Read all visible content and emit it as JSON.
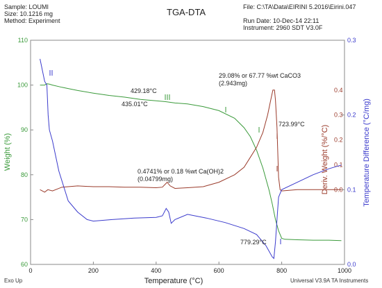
{
  "header": {
    "sample_line": "Sample: LOUMI",
    "size_line": "Size:   10.1216 mg",
    "method_line": "Method: Experiment",
    "file_line": "File: C:\\TA\\Data\\EIRINI 5.2016\\Eirini.047",
    "run_date_line": "Run Date: 10-Dec-14 22:11",
    "instrument_line": "Instrument: 2960 SDT V3.0F"
  },
  "footer": {
    "exo": "Exo Up",
    "software": "Universal V3.9A TA Instruments"
  },
  "colors": {
    "weight": "#3a9a3a",
    "deriv": "#9a3a2a",
    "temp_diff": "#3a3acc",
    "frame": "#888888"
  },
  "chart_data": {
    "type": "line",
    "title": "TGA-DTA",
    "xlabel": "Temperature (°C)",
    "xlim": [
      0,
      1000
    ],
    "x_ticks": [
      0,
      200,
      400,
      600,
      800,
      1000
    ],
    "axes": {
      "weight": {
        "label": "Weight (%)",
        "lim": [
          60,
          110
        ],
        "ticks": [
          60,
          70,
          80,
          90,
          100,
          110
        ]
      },
      "deriv": {
        "label": "Deriv. Weight (%/°C)",
        "lim": [
          -0.3,
          0.6
        ],
        "ticks": [
          0.0,
          0.1,
          0.2,
          0.3,
          0.4
        ]
      },
      "temp_diff": {
        "label": "Temperature Difference (°C/mg)",
        "lim": [
          0.0,
          0.3
        ],
        "ticks": [
          0.0,
          0.1,
          0.2,
          0.3
        ]
      }
    },
    "series": [
      {
        "axis": "weight",
        "points": [
          [
            30,
            100
          ],
          [
            45,
            100
          ],
          [
            52,
            100.3
          ],
          [
            60,
            100.2
          ],
          [
            70,
            100
          ],
          [
            100,
            99.5
          ],
          [
            150,
            98.8
          ],
          [
            200,
            98.2
          ],
          [
            250,
            97.7
          ],
          [
            300,
            97.3
          ],
          [
            350,
            96.8
          ],
          [
            400,
            96.5
          ],
          [
            430,
            96.3
          ],
          [
            440,
            96.2
          ],
          [
            460,
            96
          ],
          [
            500,
            95.8
          ],
          [
            550,
            95.2
          ],
          [
            600,
            94.3
          ],
          [
            650,
            92.6
          ],
          [
            680,
            90.5
          ],
          [
            700,
            88.5
          ],
          [
            720,
            85.5
          ],
          [
            740,
            81.5
          ],
          [
            760,
            76.5
          ],
          [
            770,
            73.5
          ],
          [
            780,
            70
          ],
          [
            790,
            67.5
          ],
          [
            800,
            65.8
          ],
          [
            810,
            65.6
          ],
          [
            850,
            65.5
          ],
          [
            900,
            65.4
          ],
          [
            950,
            65.4
          ],
          [
            990,
            65.3
          ]
        ]
      },
      {
        "axis": "deriv",
        "points": [
          [
            30,
            0.0
          ],
          [
            45,
            -0.01
          ],
          [
            55,
            0.0
          ],
          [
            70,
            -0.005
          ],
          [
            100,
            0.01
          ],
          [
            150,
            0.015
          ],
          [
            200,
            0.012
          ],
          [
            250,
            0.012
          ],
          [
            300,
            0.01
          ],
          [
            350,
            0.01
          ],
          [
            400,
            0.008
          ],
          [
            420,
            0.01
          ],
          [
            435,
            0.03
          ],
          [
            445,
            0.015
          ],
          [
            460,
            0.005
          ],
          [
            500,
            0.008
          ],
          [
            550,
            0.012
          ],
          [
            600,
            0.03
          ],
          [
            650,
            0.06
          ],
          [
            680,
            0.09
          ],
          [
            700,
            0.13
          ],
          [
            720,
            0.17
          ],
          [
            740,
            0.23
          ],
          [
            755,
            0.3
          ],
          [
            765,
            0.36
          ],
          [
            772,
            0.4
          ],
          [
            777,
            0.4
          ],
          [
            780,
            0.36
          ],
          [
            785,
            0.25
          ],
          [
            790,
            0.05
          ],
          [
            795,
            0.0
          ],
          [
            800,
            -0.005
          ],
          [
            850,
            0.0
          ],
          [
            900,
            0.0
          ],
          [
            950,
            0.0
          ],
          [
            990,
            0.0
          ]
        ]
      },
      {
        "axis": "temp_diff",
        "points": [
          [
            30,
            0.275
          ],
          [
            45,
            0.245
          ],
          [
            52,
            0.24
          ],
          [
            56,
            0.2
          ],
          [
            60,
            0.18
          ],
          [
            70,
            0.165
          ],
          [
            90,
            0.125
          ],
          [
            120,
            0.085
          ],
          [
            150,
            0.07
          ],
          [
            180,
            0.06
          ],
          [
            200,
            0.058
          ],
          [
            260,
            0.06
          ],
          [
            330,
            0.062
          ],
          [
            400,
            0.063
          ],
          [
            420,
            0.065
          ],
          [
            432,
            0.075
          ],
          [
            440,
            0.07
          ],
          [
            448,
            0.055
          ],
          [
            460,
            0.06
          ],
          [
            500,
            0.067
          ],
          [
            560,
            0.062
          ],
          [
            620,
            0.056
          ],
          [
            680,
            0.048
          ],
          [
            720,
            0.04
          ],
          [
            750,
            0.025
          ],
          [
            770,
            0.01
          ],
          [
            775,
            0.008
          ],
          [
            780,
            0.03
          ],
          [
            785,
            0.06
          ],
          [
            790,
            0.09
          ],
          [
            800,
            0.1
          ],
          [
            850,
            0.11
          ],
          [
            900,
            0.12
          ],
          [
            950,
            0.128
          ],
          [
            990,
            0.133
          ]
        ]
      }
    ],
    "annotations": [
      {
        "id": "a429",
        "text": "429.18°C"
      },
      {
        "id": "a435",
        "text": "435.01°C"
      },
      {
        "id": "a2908",
        "text": "29.08% or 67.77 %wt CaCO3"
      },
      {
        "id": "a2943",
        "text": "(2.943mg)"
      },
      {
        "id": "a723",
        "text": "723.99°C"
      },
      {
        "id": "a0474",
        "text": "0.4741% or 0.18 %wt Ca(OH)2"
      },
      {
        "id": "a04799",
        "text": "(0.04799mg)"
      },
      {
        "id": "a779",
        "text": "779.29°C"
      }
    ]
  }
}
